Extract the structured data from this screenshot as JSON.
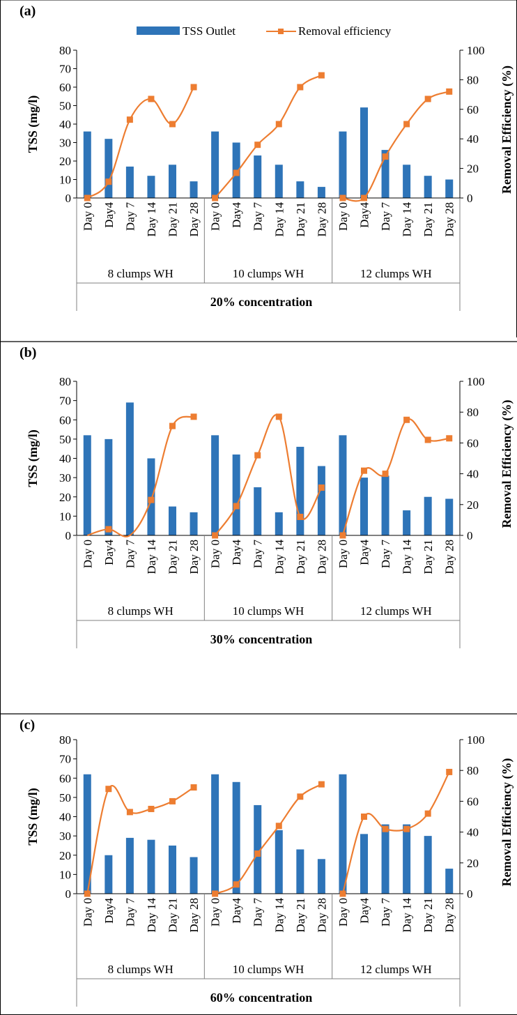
{
  "legend": {
    "bar_label": "TSS Outlet",
    "line_label": "Removal efficiency"
  },
  "colors": {
    "bar": "#2e74b8",
    "line": "#ed7d31",
    "axis": "#000000",
    "group_line": "#808080"
  },
  "chart_data": [
    {
      "type": "bar",
      "panel_label": "(a)",
      "ylabel": "TSS (mg/l)",
      "y2label": "Removal Efficiency (%)",
      "xlabel": "20% concentration",
      "ylim": [
        0,
        80
      ],
      "yticks": [
        0,
        10,
        20,
        30,
        40,
        50,
        60,
        70,
        80
      ],
      "y2lim": [
        0,
        100
      ],
      "y2ticks": [
        0,
        20,
        40,
        60,
        80,
        100
      ],
      "grid": false,
      "legend_position": "top",
      "categories": [
        "Day 0",
        "Day4",
        "Day 7",
        "Day 14",
        "Day 21",
        "Day 28"
      ],
      "groups": [
        {
          "name": "8 clumps WH",
          "tss": [
            36,
            32,
            17,
            12,
            18,
            9
          ],
          "removal": [
            0,
            11,
            53,
            67,
            50,
            75
          ]
        },
        {
          "name": "10 clumps WH",
          "tss": [
            36,
            30,
            23,
            18,
            9,
            6
          ],
          "removal": [
            0,
            17,
            36,
            50,
            75,
            83
          ]
        },
        {
          "name": "12 clumps WH",
          "tss": [
            36,
            49,
            26,
            18,
            12,
            10
          ],
          "removal": [
            0,
            0,
            28,
            50,
            67,
            72
          ]
        }
      ]
    },
    {
      "type": "bar",
      "panel_label": "(b)",
      "ylabel": "TSS (mg/l)",
      "y2label": "Removal Efficiency (%)",
      "xlabel": "30% concentration",
      "ylim": [
        0,
        80
      ],
      "yticks": [
        0,
        10,
        20,
        30,
        40,
        50,
        60,
        70,
        80
      ],
      "y2lim": [
        0,
        100
      ],
      "y2ticks": [
        0,
        20,
        40,
        60,
        80,
        100
      ],
      "grid": false,
      "categories": [
        "Day 0",
        "Day4",
        "Day 7",
        "Day 14",
        "Day 21",
        "Day 28"
      ],
      "groups": [
        {
          "name": "8 clumps WH",
          "tss": [
            52,
            50,
            69,
            40,
            15,
            12
          ],
          "removal": [
            null,
            4,
            null,
            23,
            71,
            77
          ]
        },
        {
          "name": "10 clumps WH",
          "tss": [
            52,
            42,
            25,
            12,
            46,
            36
          ],
          "removal": [
            0,
            19,
            52,
            77,
            12,
            31
          ]
        },
        {
          "name": "12 clumps WH",
          "tss": [
            52,
            30,
            31,
            13,
            20,
            19
          ],
          "removal": [
            0,
            42,
            40,
            75,
            62,
            63
          ]
        }
      ]
    },
    {
      "type": "bar",
      "panel_label": "(c)",
      "ylabel": "TSS (mg/l)",
      "y2label": "Removal Efficiency (%)",
      "xlabel": "60% concentration",
      "ylim": [
        0,
        80
      ],
      "yticks": [
        0,
        10,
        20,
        30,
        40,
        50,
        60,
        70,
        80
      ],
      "y2lim": [
        0,
        100
      ],
      "y2ticks": [
        0,
        20,
        40,
        60,
        80,
        100
      ],
      "grid": false,
      "categories": [
        "Day 0",
        "Day4",
        "Day 7",
        "Day 14",
        "Day 21",
        "Day 28"
      ],
      "groups": [
        {
          "name": "8 clumps WH",
          "tss": [
            62,
            20,
            29,
            28,
            25,
            19
          ],
          "removal": [
            0,
            68,
            53,
            55,
            60,
            69
          ]
        },
        {
          "name": "10 clumps WH",
          "tss": [
            62,
            58,
            46,
            33,
            23,
            18
          ],
          "removal": [
            0,
            6,
            26,
            44,
            63,
            71
          ]
        },
        {
          "name": "12 clumps WH",
          "tss": [
            62,
            31,
            36,
            36,
            30,
            13
          ],
          "removal": [
            0,
            50,
            42,
            42,
            52,
            79
          ]
        }
      ]
    }
  ]
}
